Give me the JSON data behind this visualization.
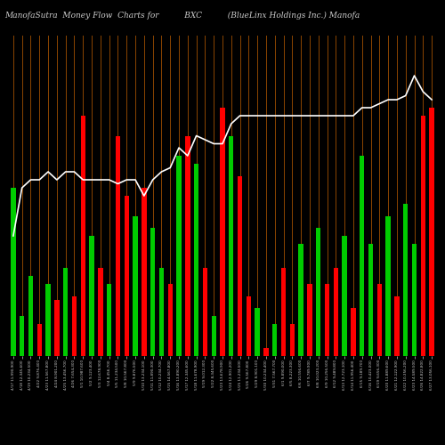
{
  "title": "ManofaSutra  Money Flow  Charts for          BXC          (BlueLinx Holdings Inc.) Manofa",
  "background_color": "#000000",
  "bar_colors": [
    "#00cc00",
    "#00cc00",
    "#00cc00",
    "#ff0000",
    "#00cc00",
    "#ff0000",
    "#00cc00",
    "#ff0000",
    "#ff0000",
    "#00cc00",
    "#ff0000",
    "#00cc00",
    "#ff0000",
    "#ff0000",
    "#00cc00",
    "#ff0000",
    "#00cc00",
    "#00cc00",
    "#ff0000",
    "#00cc00",
    "#ff0000",
    "#00cc00",
    "#ff0000",
    "#00cc00",
    "#ff0000",
    "#00cc00",
    "#ff0000",
    "#ff0000",
    "#00cc00",
    "#ff0000",
    "#00cc00",
    "#ff0000",
    "#ff0000",
    "#00cc00",
    "#ff0000",
    "#00cc00",
    "#ff0000",
    "#ff0000",
    "#00cc00",
    "#ff0000",
    "#00cc00",
    "#00cc00",
    "#ff0000",
    "#00cc00",
    "#ff0000",
    "#00cc00",
    "#00cc00",
    "#ff0000",
    "#ff0000"
  ],
  "bar_values": [
    0.42,
    0.1,
    0.2,
    0.08,
    0.18,
    0.14,
    0.22,
    0.15,
    0.6,
    0.3,
    0.22,
    0.18,
    0.55,
    0.4,
    0.35,
    0.42,
    0.32,
    0.22,
    0.18,
    0.5,
    0.55,
    0.48,
    0.22,
    0.1,
    0.62,
    0.55,
    0.45,
    0.15,
    0.12,
    0.02,
    0.08,
    0.22,
    0.08,
    0.28,
    0.18,
    0.32,
    0.18,
    0.22,
    0.3,
    0.12,
    0.5,
    0.28,
    0.18,
    0.35,
    0.15,
    0.38,
    0.28,
    0.6,
    0.62
  ],
  "line_values": [
    0.3,
    0.42,
    0.44,
    0.44,
    0.46,
    0.44,
    0.46,
    0.46,
    0.44,
    0.44,
    0.44,
    0.44,
    0.43,
    0.44,
    0.44,
    0.4,
    0.44,
    0.46,
    0.47,
    0.52,
    0.5,
    0.55,
    0.54,
    0.53,
    0.53,
    0.58,
    0.6,
    0.6,
    0.6,
    0.6,
    0.6,
    0.6,
    0.6,
    0.6,
    0.6,
    0.6,
    0.6,
    0.6,
    0.6,
    0.6,
    0.62,
    0.62,
    0.63,
    0.64,
    0.64,
    0.65,
    0.7,
    0.66,
    0.64
  ],
  "grid_color": "#8B4500",
  "line_color": "#ffffff",
  "title_color": "#cccccc",
  "title_fontsize": 6.5,
  "n_bars": 49,
  "tick_labels": [
    "4/17 11,990,900",
    "4/18 12,345,600",
    "4/19 10,234,500",
    "4/22 9,876,400",
    "4/23 11,567,800",
    "4/24 8,901,200",
    "4/25 13,456,700",
    "4/26 7,654,300",
    "5/1 10,987,600",
    "5/2 9,123,400",
    "5/3 12,678,900",
    "5/4 8,456,700",
    "5/5 11,234,500",
    "5/8 10,567,800",
    "5/9 9,876,500",
    "5/10 13,234,100",
    "5/11 11,890,300",
    "5/12 10,234,700",
    "5/15 14,567,800",
    "5/16 13,890,200",
    "5/17 12,345,600",
    "5/18 11,678,900",
    "5/19 9,012,300",
    "5/22 8,345,600",
    "5/23 13,678,900",
    "5/24 12,901,200",
    "5/25 11,234,500",
    "5/26 9,567,800",
    "5/29 8,901,100",
    "5/30 10,234,400",
    "5/31 7,567,700",
    "6/1 9,890,000",
    "6/5 8,223,300",
    "6/6 10,556,600",
    "6/7 9,789,900",
    "6/8 10,023,200",
    "6/9 10,256,500",
    "6/12 9,489,800",
    "6/13 12,723,100",
    "6/14 11,956,400",
    "6/15 9,189,700",
    "6/16 10,423,000",
    "6/19 9,656,300",
    "6/20 11,889,600",
    "6/21 12,122,900",
    "6/22 10,356,200",
    "6/23 14,589,500",
    "6/26 14,822,800",
    "6/27 13,056,100"
  ]
}
